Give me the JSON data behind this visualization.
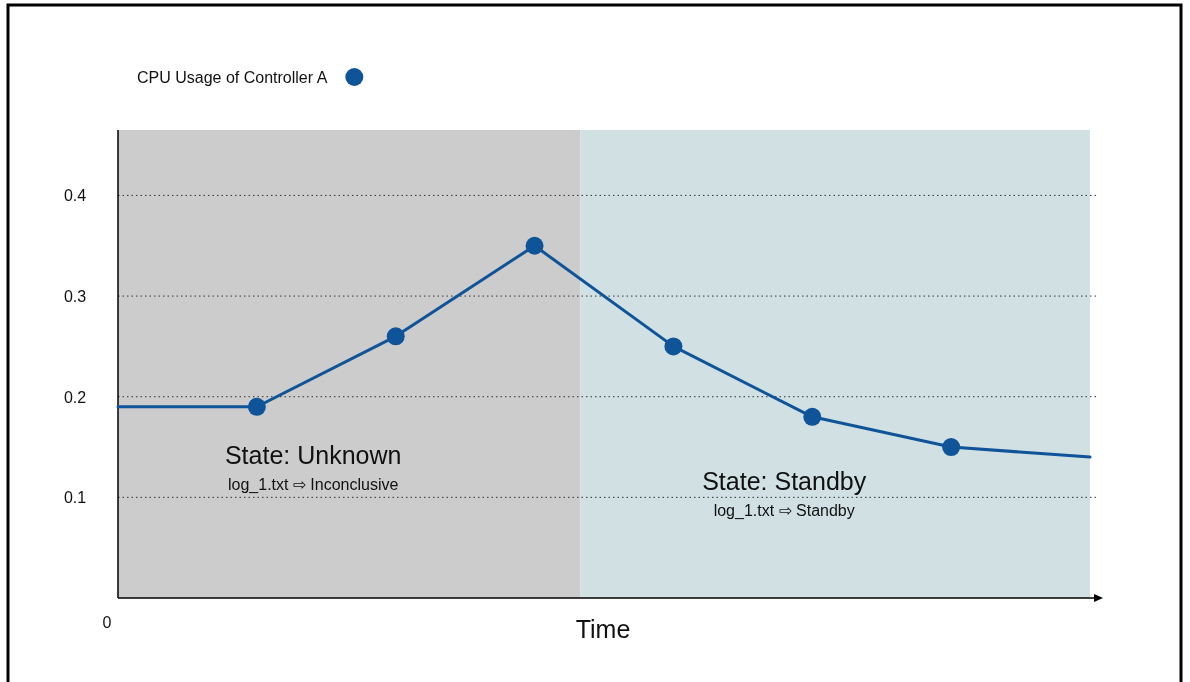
{
  "chart_data": {
    "type": "line",
    "xlabel": "Time",
    "categories": [
      null,
      null,
      null,
      null,
      null,
      null,
      null,
      null
    ],
    "ylim": [
      0,
      0.465
    ],
    "yticks": [
      0.1,
      0.2,
      0.3,
      0.4
    ],
    "tick_labels": "y",
    "grid": "y",
    "legend": "top left",
    "series": [
      {
        "color": "#0f5499",
        "marker": "none",
        "values": [
          0.19,
          0.19,
          0.26,
          0.35,
          0.25,
          0.18,
          0.15,
          0.14
        ]
      },
      {
        "type": "scatter",
        "name": "CPU Usage of Controller A",
        "color": "#0f5499",
        "marker": "circle",
        "values": [
          null,
          0.19,
          0.26,
          0.35,
          0.25,
          0.18,
          0.15,
          null
        ]
      }
    ],
    "annotations": [
      "0",
      "State: Unknown",
      "log_1.txt ⇨ Inconclusive",
      "State: Standby",
      "log_1.txt ⇨ Standby"
    ]
  }
}
